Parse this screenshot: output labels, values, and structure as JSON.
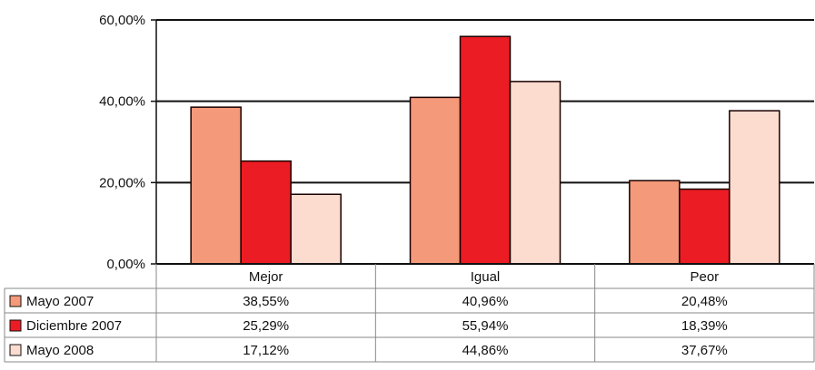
{
  "chart_data": {
    "type": "bar",
    "categories": [
      "Mejor",
      "Igual",
      "Peor"
    ],
    "series": [
      {
        "name": "Mayo 2007",
        "values": [
          38.55,
          40.96,
          20.48
        ],
        "labels": [
          "38,55%",
          "40,96%",
          "20,48%"
        ],
        "color": "#F4997A"
      },
      {
        "name": "Diciembre 2007",
        "values": [
          25.29,
          55.94,
          18.39
        ],
        "labels": [
          "25,29%",
          "55,94%",
          "18,39%"
        ],
        "color": "#EC1C24"
      },
      {
        "name": "Mayo 2008",
        "values": [
          17.12,
          44.86,
          37.67
        ],
        "labels": [
          "17,12%",
          "44,86%",
          "37,67%"
        ],
        "color": "#FDDCD0"
      }
    ],
    "y_ticks": [
      "0,00%",
      "20,00%",
      "40,00%",
      "60,00%"
    ],
    "ylim": [
      0,
      60
    ],
    "grid": true,
    "legend": "data-table",
    "title": "",
    "xlabel": "",
    "ylabel": ""
  }
}
